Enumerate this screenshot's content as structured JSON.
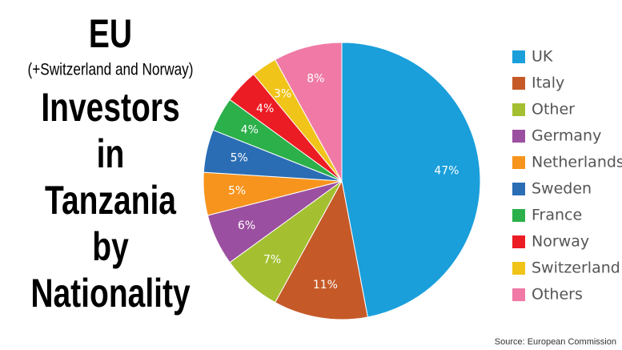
{
  "chart_data": {
    "type": "pie",
    "title": "EU",
    "subtitle": "(+Switzerland and Norway)",
    "title_lines": [
      "Investors",
      "in",
      "Tanzania",
      "by",
      "Nationality"
    ],
    "source": "Source: European Commission",
    "categories": [
      "UK",
      "Italy",
      "Other",
      "Germany",
      "Netherlands",
      "Sweden",
      "France",
      "Norway",
      "Switzerland",
      "Others"
    ],
    "values": [
      47,
      11,
      7,
      6,
      5,
      5,
      4,
      4,
      3,
      8
    ],
    "value_labels": [
      "47%",
      "11%",
      "7%",
      "6%",
      "5%",
      "5%",
      "4%",
      "4%",
      "3%",
      "8%"
    ],
    "colors": [
      "#1a9fdb",
      "#c55a28",
      "#a4c031",
      "#9b4fa0",
      "#f7941d",
      "#2a6db5",
      "#2bb04a",
      "#ec1c24",
      "#f0c419",
      "#f07aa5"
    ],
    "legend": "right"
  }
}
